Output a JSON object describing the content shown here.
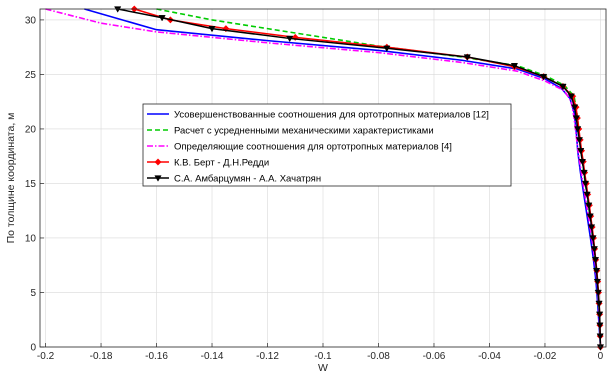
{
  "chart_data": {
    "type": "line",
    "xlabel": "W",
    "ylabel": "По толщине координата, м",
    "xlim": [
      -0.202,
      0.002
    ],
    "ylim": [
      0,
      31
    ],
    "xticks": [
      -0.2,
      -0.18,
      -0.16,
      -0.14,
      -0.12,
      -0.1,
      -0.08,
      -0.06,
      -0.04,
      -0.02,
      0
    ],
    "xtick_labels": [
      "-0.2",
      "-0.18",
      "-0.16",
      "-0.14",
      "-0.12",
      "-0.1",
      "-0.08",
      "-0.06",
      "-0.04",
      "-0.02",
      "0"
    ],
    "yticks": [
      0,
      5,
      10,
      15,
      20,
      25,
      30
    ],
    "ytick_labels": [
      "0",
      "5",
      "10",
      "15",
      "20",
      "25",
      "30"
    ],
    "grid": true,
    "legend_position": "center",
    "series": [
      {
        "name": "Усовершенствованные соотношения для ортотропных материалов [12]",
        "color": "#0000ff",
        "dash": "solid",
        "marker": "none",
        "points": [
          [
            -0.186,
            31
          ],
          [
            -0.16,
            29.1
          ],
          [
            -0.12,
            28.1
          ],
          [
            -0.08,
            27.2
          ],
          [
            -0.05,
            26.3
          ],
          [
            -0.03,
            25.5
          ],
          [
            -0.02,
            24.6
          ],
          [
            -0.014,
            23.7
          ],
          [
            -0.011,
            22.8
          ],
          [
            -0.0095,
            21.5
          ],
          [
            -0.0088,
            20
          ],
          [
            -0.0082,
            18
          ],
          [
            -0.0072,
            16
          ],
          [
            -0.006,
            14
          ],
          [
            -0.0048,
            12
          ],
          [
            -0.0036,
            10
          ],
          [
            -0.0025,
            8
          ],
          [
            -0.0016,
            6
          ],
          [
            -0.001,
            4
          ],
          [
            -0.0005,
            2
          ],
          [
            0,
            0
          ]
        ]
      },
      {
        "name": "Расчет с усредненными механическими характеристиками",
        "color": "#00cc00",
        "dash": "dashed",
        "marker": "none",
        "points": [
          [
            -0.16,
            31
          ],
          [
            -0.14,
            30
          ],
          [
            -0.11,
            28.8
          ],
          [
            -0.08,
            27.6
          ],
          [
            -0.05,
            26.6
          ],
          [
            -0.03,
            25.8
          ],
          [
            -0.02,
            24.9
          ],
          [
            -0.013,
            24
          ],
          [
            -0.0095,
            23
          ],
          [
            -0.0085,
            21.5
          ],
          [
            -0.0078,
            20
          ],
          [
            -0.007,
            18
          ],
          [
            -0.006,
            16
          ],
          [
            -0.0049,
            14
          ],
          [
            -0.0038,
            12
          ],
          [
            -0.0028,
            10
          ],
          [
            -0.0019,
            8
          ],
          [
            -0.0012,
            6
          ],
          [
            -0.0007,
            4
          ],
          [
            -0.0003,
            2
          ],
          [
            0,
            0
          ]
        ]
      },
      {
        "name": "Определяющие соотношения для ортотропных материалов [4]",
        "color": "#ff00ff",
        "dash": "dashdot",
        "marker": "none",
        "points": [
          [
            -0.2,
            31
          ],
          [
            -0.18,
            29.7
          ],
          [
            -0.16,
            28.9
          ],
          [
            -0.12,
            27.9
          ],
          [
            -0.08,
            27
          ],
          [
            -0.05,
            26.1
          ],
          [
            -0.03,
            25.3
          ],
          [
            -0.02,
            24.4
          ],
          [
            -0.013,
            23.5
          ],
          [
            -0.0105,
            22.5
          ],
          [
            -0.0095,
            21
          ],
          [
            -0.0088,
            19.5
          ],
          [
            -0.0078,
            17.5
          ],
          [
            -0.0066,
            15.5
          ],
          [
            -0.0053,
            13.5
          ],
          [
            -0.004,
            11.5
          ],
          [
            -0.0028,
            9.5
          ],
          [
            -0.0018,
            7.5
          ],
          [
            -0.001,
            5.5
          ],
          [
            -0.0005,
            3.5
          ],
          [
            -0.0002,
            1.5
          ],
          [
            0,
            0
          ]
        ]
      },
      {
        "name": "К.В. Берт - Д.Н.Редди",
        "color": "#ff0000",
        "dash": "solid",
        "marker": "diamond",
        "points": [
          [
            -0.168,
            31
          ],
          [
            -0.155,
            30
          ],
          [
            -0.135,
            29.2
          ],
          [
            -0.11,
            28.4
          ],
          [
            -0.077,
            27.5
          ],
          [
            -0.048,
            26.6
          ],
          [
            -0.031,
            25.7
          ],
          [
            -0.0205,
            24.8
          ],
          [
            -0.0135,
            23.9
          ],
          [
            -0.01,
            23
          ],
          [
            -0.0088,
            22
          ],
          [
            -0.0083,
            21
          ],
          [
            -0.0078,
            20
          ],
          [
            -0.0073,
            19
          ],
          [
            -0.0068,
            18
          ],
          [
            -0.0062,
            17
          ],
          [
            -0.0057,
            16
          ],
          [
            -0.0051,
            15
          ],
          [
            -0.0046,
            14
          ],
          [
            -0.004,
            13
          ],
          [
            -0.0035,
            12
          ],
          [
            -0.003,
            11
          ],
          [
            -0.0025,
            10
          ],
          [
            -0.0021,
            9
          ],
          [
            -0.0017,
            8
          ],
          [
            -0.0013,
            7
          ],
          [
            -0.001,
            6
          ],
          [
            -0.0007,
            5
          ],
          [
            -0.0005,
            4
          ],
          [
            -0.0003,
            3
          ],
          [
            -0.0002,
            2
          ],
          [
            -0.0001,
            1
          ],
          [
            0,
            0
          ]
        ]
      },
      {
        "name": "С.А. Амбарцумян - А.А. Хачатрян",
        "color": "#000000",
        "dash": "solid",
        "marker": "triangle-down",
        "points": [
          [
            -0.174,
            31
          ],
          [
            -0.158,
            30.2
          ],
          [
            -0.14,
            29.2
          ],
          [
            -0.112,
            28.3
          ],
          [
            -0.077,
            27.4
          ],
          [
            -0.048,
            26.6
          ],
          [
            -0.031,
            25.8
          ],
          [
            -0.0205,
            24.8
          ],
          [
            -0.0135,
            23.9
          ],
          [
            -0.0105,
            23
          ],
          [
            -0.0093,
            22
          ],
          [
            -0.0087,
            21
          ],
          [
            -0.0082,
            20
          ],
          [
            -0.0076,
            19
          ],
          [
            -0.0071,
            18
          ],
          [
            -0.0065,
            17
          ],
          [
            -0.0059,
            16
          ],
          [
            -0.0054,
            15
          ],
          [
            -0.0048,
            14
          ],
          [
            -0.0042,
            13
          ],
          [
            -0.0037,
            12
          ],
          [
            -0.0032,
            11
          ],
          [
            -0.0027,
            10
          ],
          [
            -0.0022,
            9
          ],
          [
            -0.0018,
            8
          ],
          [
            -0.0014,
            7
          ],
          [
            -0.0011,
            6
          ],
          [
            -0.0008,
            5
          ],
          [
            -0.0005,
            4
          ],
          [
            -0.0003,
            3
          ],
          [
            -0.0002,
            2
          ],
          [
            -0.0001,
            1
          ],
          [
            0,
            0
          ]
        ]
      }
    ]
  }
}
